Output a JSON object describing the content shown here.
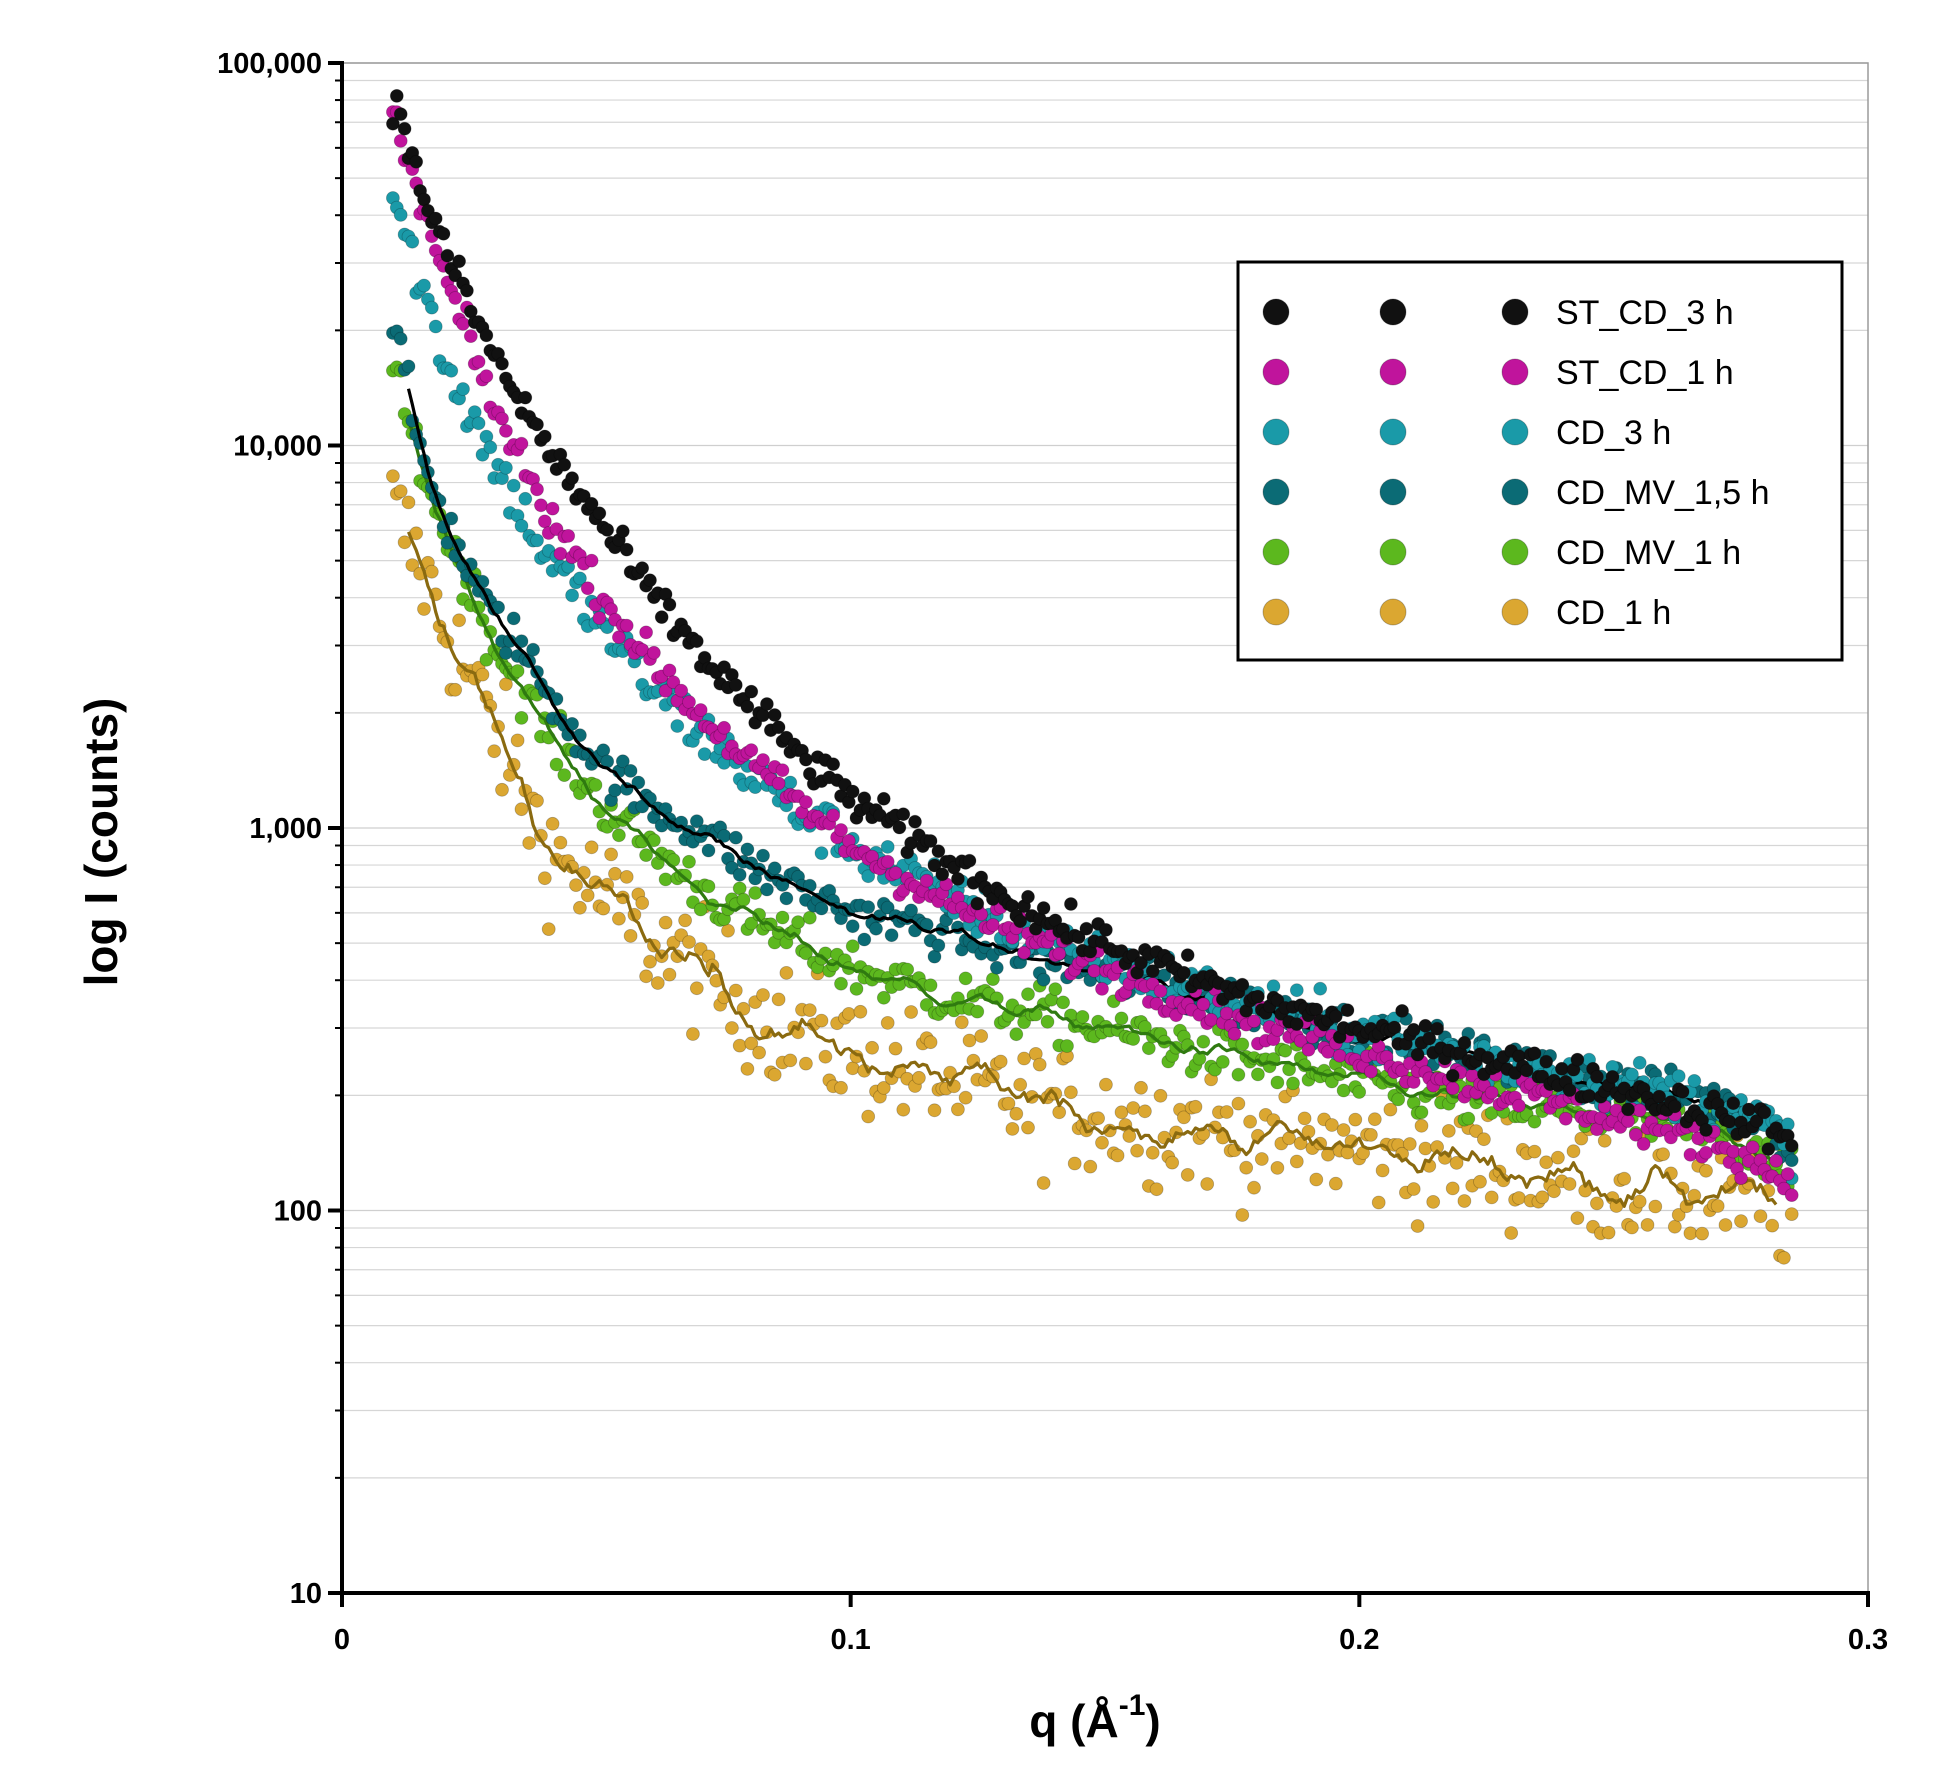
{
  "chart_data": {
    "type": "scatter",
    "title": "",
    "xlabel": "q (Å⁻¹)",
    "xlabel_main": "q (Å",
    "xlabel_sup": "-1",
    "xlabel_close": ")",
    "ylabel": "log I (counts)",
    "xscale": "linear",
    "yscale": "log",
    "xlim": [
      0,
      0.3
    ],
    "ylim": [
      10,
      100000
    ],
    "x_ticks": [
      0,
      0.1,
      0.2,
      0.3
    ],
    "x_tick_labels": [
      "0",
      "0.1",
      "0.2",
      "0.3"
    ],
    "y_ticks": [
      10,
      100,
      1000,
      10000,
      100000
    ],
    "y_tick_labels": [
      "10",
      "100",
      "1,000",
      "10,000",
      "100,000"
    ],
    "grid": "horizontal minor lines",
    "legend_position": "top-right",
    "x_start": 0.01,
    "x_end": 0.285,
    "series": [
      {
        "name": "ST_CD_3 h",
        "color": "#111111",
        "trend_color": "#000000",
        "has_trend_line": false,
        "noise": 0.025,
        "points": [
          [
            0.01,
            80000
          ],
          [
            0.015,
            50000
          ],
          [
            0.02,
            33000
          ],
          [
            0.03,
            17000
          ],
          [
            0.04,
            10000
          ],
          [
            0.05,
            6500
          ],
          [
            0.06,
            4200
          ],
          [
            0.07,
            2900
          ],
          [
            0.08,
            2100
          ],
          [
            0.09,
            1550
          ],
          [
            0.1,
            1200
          ],
          [
            0.12,
            800
          ],
          [
            0.14,
            560
          ],
          [
            0.16,
            440
          ],
          [
            0.18,
            350
          ],
          [
            0.2,
            300
          ],
          [
            0.22,
            260
          ],
          [
            0.25,
            210
          ],
          [
            0.27,
            180
          ],
          [
            0.28,
            165
          ],
          [
            0.285,
            150
          ]
        ]
      },
      {
        "name": "ST_CD_1 h",
        "color": "#c0149c",
        "trend_color": "#8a0e70",
        "has_trend_line": false,
        "noise": 0.025,
        "points": [
          [
            0.01,
            72000
          ],
          [
            0.015,
            45000
          ],
          [
            0.02,
            28000
          ],
          [
            0.03,
            12500
          ],
          [
            0.04,
            6800
          ],
          [
            0.05,
            4200
          ],
          [
            0.06,
            2800
          ],
          [
            0.07,
            2000
          ],
          [
            0.08,
            1500
          ],
          [
            0.09,
            1150
          ],
          [
            0.1,
            900
          ],
          [
            0.12,
            630
          ],
          [
            0.14,
            480
          ],
          [
            0.16,
            380
          ],
          [
            0.18,
            310
          ],
          [
            0.2,
            260
          ],
          [
            0.22,
            220
          ],
          [
            0.25,
            175
          ],
          [
            0.27,
            150
          ],
          [
            0.28,
            130
          ],
          [
            0.285,
            120
          ]
        ]
      },
      {
        "name": "CD_3 h",
        "color": "#1a9aa8",
        "trend_color": "#0f6f79",
        "has_trend_line": false,
        "noise": 0.035,
        "points": [
          [
            0.01,
            45000
          ],
          [
            0.015,
            28000
          ],
          [
            0.02,
            17000
          ],
          [
            0.03,
            9000
          ],
          [
            0.04,
            5200
          ],
          [
            0.05,
            3500
          ],
          [
            0.06,
            2400
          ],
          [
            0.07,
            1800
          ],
          [
            0.08,
            1400
          ],
          [
            0.09,
            1100
          ],
          [
            0.1,
            900
          ],
          [
            0.12,
            650
          ],
          [
            0.14,
            500
          ],
          [
            0.16,
            410
          ],
          [
            0.18,
            340
          ],
          [
            0.2,
            290
          ],
          [
            0.22,
            255
          ],
          [
            0.25,
            215
          ],
          [
            0.27,
            190
          ],
          [
            0.28,
            165
          ],
          [
            0.285,
            150
          ]
        ]
      },
      {
        "name": "CD_MV_1,5 h",
        "color": "#0b6b75",
        "trend_color": "#000000",
        "has_trend_line": true,
        "noise": 0.03,
        "points": [
          [
            0.01,
            22000
          ],
          [
            0.012,
            16000
          ],
          [
            0.015,
            10000
          ],
          [
            0.02,
            6500
          ],
          [
            0.025,
            4700
          ],
          [
            0.03,
            3500
          ],
          [
            0.035,
            3000
          ],
          [
            0.04,
            2300
          ],
          [
            0.05,
            1500
          ],
          [
            0.06,
            1150
          ],
          [
            0.07,
            1000
          ],
          [
            0.08,
            800
          ],
          [
            0.1,
            600
          ],
          [
            0.12,
            530
          ],
          [
            0.14,
            440
          ],
          [
            0.16,
            390
          ],
          [
            0.18,
            340
          ],
          [
            0.2,
            290
          ],
          [
            0.22,
            255
          ],
          [
            0.25,
            215
          ],
          [
            0.27,
            190
          ],
          [
            0.28,
            175
          ],
          [
            0.285,
            145
          ]
        ]
      },
      {
        "name": "CD_MV_1 h",
        "color": "#5cb81e",
        "trend_color": "#2f7a10",
        "has_trend_line": true,
        "noise": 0.035,
        "points": [
          [
            0.01,
            16000
          ],
          [
            0.012,
            12500
          ],
          [
            0.015,
            9500
          ],
          [
            0.02,
            6000
          ],
          [
            0.025,
            4300
          ],
          [
            0.03,
            3000
          ],
          [
            0.035,
            2400
          ],
          [
            0.04,
            1800
          ],
          [
            0.05,
            1200
          ],
          [
            0.06,
            900
          ],
          [
            0.07,
            700
          ],
          [
            0.08,
            580
          ],
          [
            0.1,
            430
          ],
          [
            0.12,
            360
          ],
          [
            0.14,
            320
          ],
          [
            0.16,
            280
          ],
          [
            0.18,
            245
          ],
          [
            0.2,
            215
          ],
          [
            0.22,
            195
          ],
          [
            0.25,
            175
          ],
          [
            0.27,
            160
          ],
          [
            0.28,
            145
          ],
          [
            0.285,
            130
          ]
        ]
      },
      {
        "name": "CD_1 h",
        "color": "#dba731",
        "trend_color": "#8a6a10",
        "has_trend_line": true,
        "noise": 0.08,
        "points": [
          [
            0.01,
            6900
          ],
          [
            0.015,
            5000
          ],
          [
            0.02,
            3400
          ],
          [
            0.025,
            2500
          ],
          [
            0.03,
            1800
          ],
          [
            0.035,
            1300
          ],
          [
            0.04,
            900
          ],
          [
            0.045,
            780
          ],
          [
            0.05,
            680
          ],
          [
            0.06,
            520
          ],
          [
            0.07,
            420
          ],
          [
            0.08,
            340
          ],
          [
            0.09,
            290
          ],
          [
            0.1,
            260
          ],
          [
            0.12,
            215
          ],
          [
            0.14,
            185
          ],
          [
            0.16,
            170
          ],
          [
            0.18,
            155
          ],
          [
            0.2,
            145
          ],
          [
            0.22,
            135
          ],
          [
            0.25,
            120
          ],
          [
            0.27,
            110
          ],
          [
            0.28,
            105
          ],
          [
            0.285,
            100
          ]
        ]
      }
    ]
  }
}
